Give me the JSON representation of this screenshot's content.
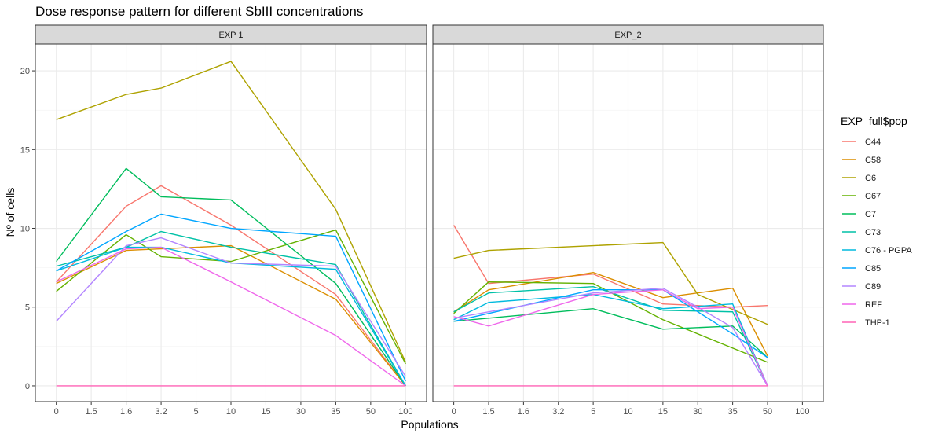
{
  "chart_data": {
    "type": "line",
    "title": "Dose response pattern for different SbIII concentrations",
    "xlabel": "Populations",
    "ylabel": "Nº of cells",
    "ylim": [
      -1,
      21.7
    ],
    "yticks": [
      0,
      5,
      10,
      15,
      20
    ],
    "categories": [
      "0",
      "1.5",
      "1.6",
      "3.2",
      "5",
      "10",
      "15",
      "30",
      "35",
      "50",
      "100"
    ],
    "legend": {
      "title": "EXP_full$pop",
      "position": "right"
    },
    "grid": true,
    "colors": {
      "C44": "#F8766D",
      "C58": "#DB8E00",
      "C6": "#AEA200",
      "C67": "#64B200",
      "C7": "#00BD5C",
      "C73": "#00C1A7",
      "C76 - PGPA": "#00BADE",
      "C85": "#00A6FF",
      "C89": "#B385FF",
      "REF": "#EF67EB",
      "THP-1": "#FF63B6"
    },
    "panels": [
      {
        "label": "EXP 1",
        "series": [
          {
            "name": "C44",
            "points": [
              [
                "0",
                6.6
              ],
              [
                "1.6",
                11.4
              ],
              [
                "3.2",
                12.7
              ],
              [
                "10",
                10.2
              ],
              [
                "35",
                5.8
              ],
              [
                "100",
                0.0
              ]
            ]
          },
          {
            "name": "C58",
            "points": [
              [
                "0",
                6.5
              ],
              [
                "1.6",
                8.6
              ],
              [
                "3.2",
                8.7
              ],
              [
                "10",
                8.9
              ],
              [
                "35",
                5.5
              ],
              [
                "100",
                0.0
              ]
            ]
          },
          {
            "name": "C6",
            "points": [
              [
                "0",
                16.9
              ],
              [
                "1.6",
                18.5
              ],
              [
                "3.2",
                18.9
              ],
              [
                "10",
                20.6
              ],
              [
                "35",
                11.2
              ],
              [
                "100",
                1.5
              ]
            ]
          },
          {
            "name": "C67",
            "points": [
              [
                "0",
                6.0
              ],
              [
                "1.6",
                9.6
              ],
              [
                "3.2",
                8.2
              ],
              [
                "10",
                7.9
              ],
              [
                "35",
                9.9
              ],
              [
                "100",
                1.4
              ]
            ]
          },
          {
            "name": "C7",
            "points": [
              [
                "0",
                7.9
              ],
              [
                "1.6",
                13.8
              ],
              [
                "3.2",
                12.0
              ],
              [
                "10",
                11.8
              ],
              [
                "35",
                6.5
              ],
              [
                "100",
                0.0
              ]
            ]
          },
          {
            "name": "C73",
            "points": [
              [
                "0",
                7.6
              ],
              [
                "1.6",
                8.8
              ],
              [
                "3.2",
                9.8
              ],
              [
                "10",
                8.8
              ],
              [
                "35",
                7.7
              ],
              [
                "100",
                0.0
              ]
            ]
          },
          {
            "name": "C76 - PGPA",
            "points": [
              [
                "0",
                7.3
              ],
              [
                "1.6",
                8.8
              ],
              [
                "3.2",
                8.8
              ],
              [
                "10",
                7.8
              ],
              [
                "35",
                7.4
              ],
              [
                "100",
                0.0
              ]
            ]
          },
          {
            "name": "C85",
            "points": [
              [
                "0",
                7.3
              ],
              [
                "1.6",
                9.8
              ],
              [
                "3.2",
                10.9
              ],
              [
                "10",
                10.0
              ],
              [
                "35",
                9.5
              ],
              [
                "100",
                0.3
              ]
            ]
          },
          {
            "name": "C89",
            "points": [
              [
                "0",
                4.1
              ],
              [
                "1.6",
                8.9
              ],
              [
                "3.2",
                9.4
              ],
              [
                "10",
                7.8
              ],
              [
                "35",
                7.6
              ],
              [
                "100",
                0.6
              ]
            ]
          },
          {
            "name": "REF",
            "points": [
              [
                "0",
                6.6
              ],
              [
                "1.6",
                8.7
              ],
              [
                "3.2",
                8.8
              ],
              [
                "10",
                6.6
              ],
              [
                "35",
                3.2
              ],
              [
                "100",
                0.0
              ]
            ]
          },
          {
            "name": "THP-1",
            "points": [
              [
                "0",
                0.0
              ],
              [
                "1.6",
                0.0
              ],
              [
                "3.2",
                0.0
              ],
              [
                "10",
                0.0
              ],
              [
                "35",
                0.0
              ],
              [
                "100",
                0.0
              ]
            ]
          }
        ]
      },
      {
        "label": "EXP_2",
        "series": [
          {
            "name": "C44",
            "points": [
              [
                "0",
                10.2
              ],
              [
                "1.5",
                6.5
              ],
              [
                "5",
                7.1
              ],
              [
                "15",
                5.2
              ],
              [
                "35",
                5.0
              ],
              [
                "50",
                5.1
              ]
            ]
          },
          {
            "name": "C58",
            "points": [
              [
                "0",
                4.7
              ],
              [
                "1.5",
                6.1
              ],
              [
                "5",
                7.2
              ],
              [
                "15",
                5.6
              ],
              [
                "35",
                6.2
              ],
              [
                "50",
                1.9
              ]
            ]
          },
          {
            "name": "C6",
            "points": [
              [
                "0",
                8.1
              ],
              [
                "1.5",
                8.6
              ],
              [
                "5",
                8.9
              ],
              [
                "15",
                9.1
              ],
              [
                "30",
                5.8
              ],
              [
                "50",
                3.9
              ]
            ]
          },
          {
            "name": "C67",
            "points": [
              [
                "0",
                4.6
              ],
              [
                "1.5",
                6.6
              ],
              [
                "5",
                6.5
              ],
              [
                "15",
                4.2
              ],
              [
                "50",
                1.5
              ]
            ]
          },
          {
            "name": "C7",
            "points": [
              [
                "0",
                4.1
              ],
              [
                "1.5",
                4.3
              ],
              [
                "5",
                4.9
              ],
              [
                "15",
                3.6
              ],
              [
                "35",
                3.8
              ],
              [
                "50",
                1.8
              ]
            ]
          },
          {
            "name": "C73",
            "points": [
              [
                "0",
                4.7
              ],
              [
                "1.5",
                5.9
              ],
              [
                "5",
                6.3
              ],
              [
                "15",
                4.8
              ],
              [
                "35",
                4.7
              ],
              [
                "50",
                0.0
              ]
            ]
          },
          {
            "name": "C76 - PGPA",
            "points": [
              [
                "0",
                4.2
              ],
              [
                "1.5",
                5.3
              ],
              [
                "5",
                5.8
              ],
              [
                "15",
                4.9
              ],
              [
                "35",
                5.2
              ],
              [
                "50",
                0.0
              ]
            ]
          },
          {
            "name": "C85",
            "points": [
              [
                "0",
                4.1
              ],
              [
                "5",
                6.1
              ],
              [
                "15",
                6.1
              ],
              [
                "35",
                3.3
              ],
              [
                "50",
                1.8
              ]
            ]
          },
          {
            "name": "C89",
            "points": [
              [
                "0",
                4.3
              ],
              [
                "5",
                5.9
              ],
              [
                "15",
                6.2
              ],
              [
                "30",
                5.0
              ],
              [
                "35",
                3.7
              ],
              [
                "50",
                0.0
              ]
            ]
          },
          {
            "name": "REF",
            "points": [
              [
                "0",
                4.4
              ],
              [
                "1.5",
                3.8
              ],
              [
                "5",
                5.8
              ],
              [
                "15",
                6.1
              ],
              [
                "30",
                4.9
              ],
              [
                "35",
                5.0
              ],
              [
                "50",
                0.0
              ]
            ]
          },
          {
            "name": "THP-1",
            "points": [
              [
                "0",
                0.0
              ],
              [
                "1.5",
                0.0
              ],
              [
                "5",
                0.0
              ],
              [
                "15",
                0.0
              ],
              [
                "35",
                0.0
              ],
              [
                "50",
                0.0
              ]
            ]
          }
        ]
      }
    ]
  }
}
